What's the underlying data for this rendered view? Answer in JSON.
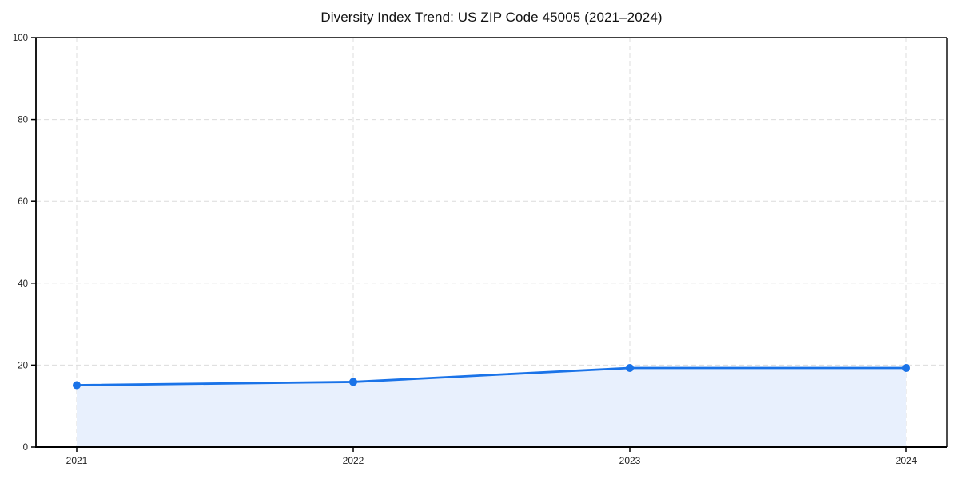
{
  "chart_data": {
    "type": "area",
    "title": "Diversity Index Trend: US ZIP Code 45005 (2021–2024)",
    "categories": [
      "2021",
      "2022",
      "2023",
      "2024"
    ],
    "series": [
      {
        "name": "Diversity Index",
        "values": [
          15.1,
          15.9,
          19.3,
          19.3
        ]
      }
    ],
    "xlabel": "",
    "ylabel": "",
    "ylim": [
      0,
      100
    ],
    "yticks": [
      0,
      20,
      40,
      60,
      80,
      100
    ],
    "grid": true,
    "grid_style": "dashed",
    "legend_position": "none",
    "marker": "circle",
    "colors": {
      "line": "#1a73e8",
      "marker": "#1a73e8",
      "area_fill": "#e8f0fd",
      "grid": "#dcdcdc",
      "axis": "#000000",
      "tick_label": "#1f1f1f",
      "background": "#ffffff"
    }
  }
}
